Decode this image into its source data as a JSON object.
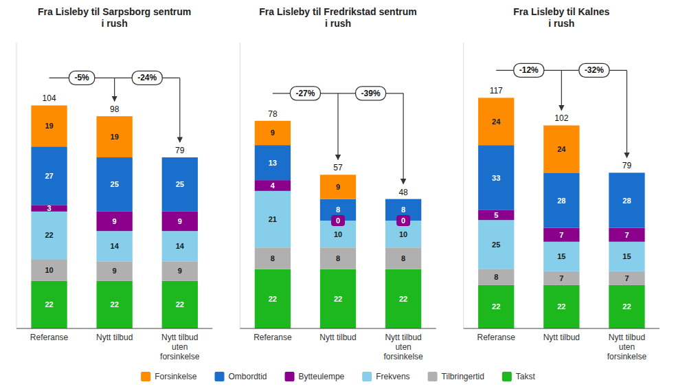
{
  "chart_data": [
    {
      "type": "bar",
      "stacked": true,
      "data_labels": true,
      "tick_labels": "x",
      "legend": "bottom",
      "title": "Fra Lisleby til Sarpsborg sentrum\ni rush",
      "categories": [
        "Referanse",
        "Nytt tilbud",
        "Nytt tilbud\nuten\nforsinkelse"
      ],
      "ylim": [
        0,
        132
      ],
      "series": [
        {
          "name": "Takst",
          "color": "#1db81d",
          "values": [
            22,
            22,
            22
          ]
        },
        {
          "name": "Tilbringertid",
          "color": "#b0b0b0",
          "values": [
            10,
            9,
            9
          ]
        },
        {
          "name": "Frekvens",
          "color": "#87ceeb",
          "values": [
            22,
            14,
            14
          ]
        },
        {
          "name": "Bytteulempe",
          "color": "#8b008b",
          "values": [
            3,
            9,
            9
          ]
        },
        {
          "name": "Ombordtid",
          "color": "#1a6fcc",
          "values": [
            27,
            25,
            25
          ]
        },
        {
          "name": "Forsinkelse",
          "color": "#ff8c00",
          "values": [
            19,
            19,
            null
          ]
        }
      ],
      "totals": [
        104,
        98,
        79
      ],
      "annotations": [
        "-5%",
        "-24%"
      ]
    },
    {
      "type": "bar",
      "stacked": true,
      "data_labels": true,
      "tick_labels": "x",
      "title": "Fra Lisleby til Fredrikstad sentrum\ni rush",
      "categories": [
        "Referanse",
        "Nytt tilbud",
        "Nytt tilbud\nuten\nforsinkelse"
      ],
      "ylim": [
        0,
        106
      ],
      "series": [
        {
          "name": "Takst",
          "color": "#1db81d",
          "values": [
            22,
            22,
            22
          ]
        },
        {
          "name": "Tilbringertid",
          "color": "#b0b0b0",
          "values": [
            8,
            8,
            8
          ]
        },
        {
          "name": "Frekvens",
          "color": "#87ceeb",
          "values": [
            21,
            10,
            10
          ]
        },
        {
          "name": "Bytteulempe",
          "color": "#8b008b",
          "values": [
            4,
            0,
            0
          ]
        },
        {
          "name": "Ombordtid",
          "color": "#1a6fcc",
          "values": [
            13,
            8,
            8
          ]
        },
        {
          "name": "Forsinkelse",
          "color": "#ff8c00",
          "values": [
            9,
            9,
            null
          ]
        }
      ],
      "totals": [
        78,
        57,
        48
      ],
      "annotations": [
        "-27%",
        "-39%"
      ]
    },
    {
      "type": "bar",
      "stacked": true,
      "data_labels": true,
      "tick_labels": "x",
      "title": "Fra Lisleby til Kalnes\ni rush",
      "categories": [
        "Referanse",
        "Nytt tilbud",
        "Nytt tilbud\nuten\nforsinkelse"
      ],
      "ylim": [
        0,
        145
      ],
      "series": [
        {
          "name": "Takst",
          "color": "#1db81d",
          "values": [
            22,
            22,
            22
          ]
        },
        {
          "name": "Tilbringertid",
          "color": "#b0b0b0",
          "values": [
            8,
            7,
            7
          ]
        },
        {
          "name": "Frekvens",
          "color": "#87ceeb",
          "values": [
            25,
            15,
            15
          ]
        },
        {
          "name": "Bytteulempe",
          "color": "#8b008b",
          "values": [
            5,
            7,
            7
          ]
        },
        {
          "name": "Ombordtid",
          "color": "#1a6fcc",
          "values": [
            33,
            28,
            28
          ]
        },
        {
          "name": "Forsinkelse",
          "color": "#ff8c00",
          "values": [
            24,
            24,
            null
          ]
        }
      ],
      "totals": [
        117,
        102,
        79
      ],
      "annotations": [
        "-12%",
        "-32%"
      ]
    }
  ]
}
